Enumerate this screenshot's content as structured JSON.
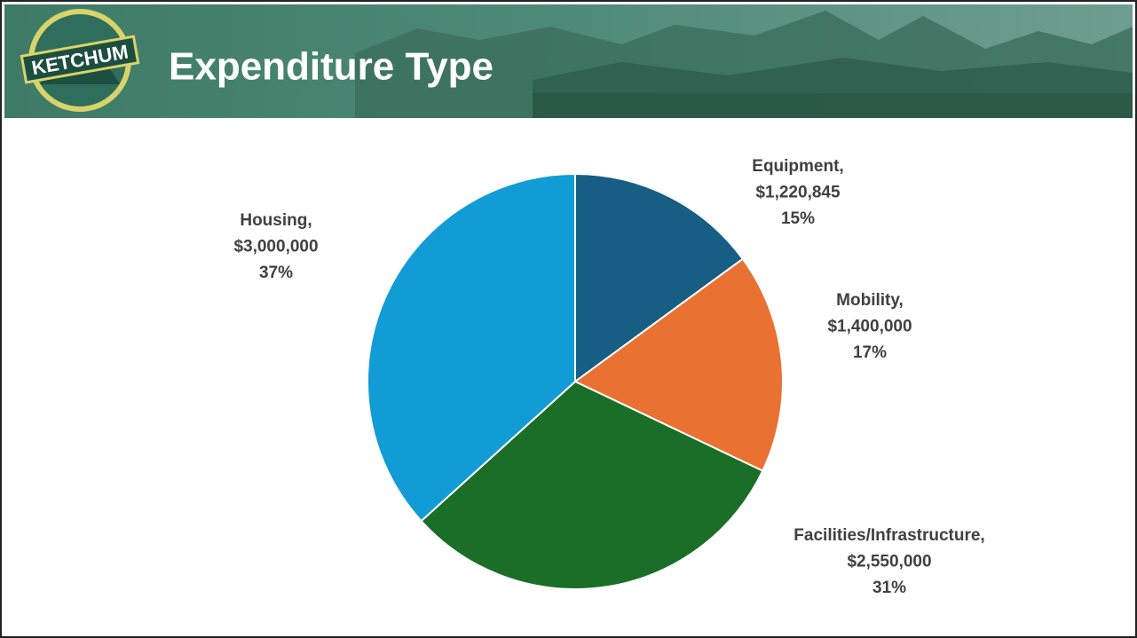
{
  "header": {
    "logo": "KETCHUM"
  },
  "chart_data": {
    "type": "pie",
    "title": "Expenditure Type",
    "categories": [
      "Equipment,",
      "Mobility,",
      "Facilities/Infrastructure,",
      "Housing,"
    ],
    "values": [
      1220845,
      1400000,
      2550000,
      3000000
    ],
    "value_labels": [
      "$1,220,845",
      "$1,400,000",
      "$2,550,000",
      "$3,000,000"
    ],
    "percent_labels": [
      "15%",
      "17%",
      "31%",
      "37%"
    ],
    "colors": [
      "#175e84",
      "#e97132",
      "#1b6e27",
      "#119cd6"
    ]
  }
}
